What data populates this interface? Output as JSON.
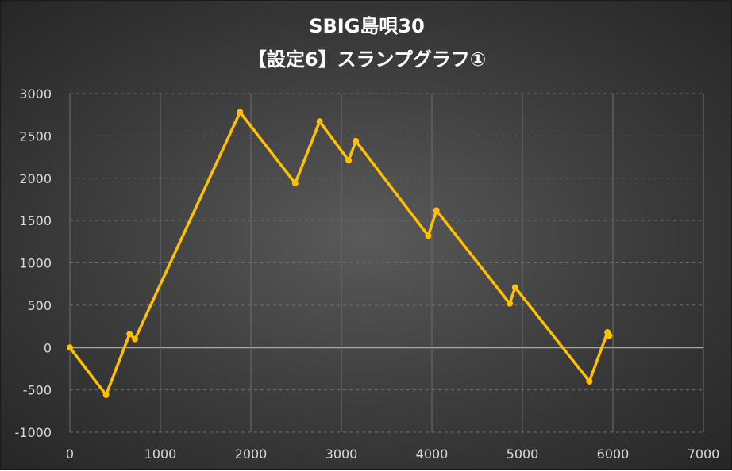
{
  "chart_data": {
    "type": "line",
    "title_line1": "SBIG島唄30",
    "title_line2": "【設定6】スランプグラフ①",
    "xlim": [
      0,
      7000
    ],
    "ylim": [
      -1000,
      3000
    ],
    "x_ticks": [
      "0",
      "1000",
      "2000",
      "3000",
      "4000",
      "5000",
      "6000",
      "7000"
    ],
    "y_ticks": [
      "3000",
      "2500",
      "2000",
      "1500",
      "1000",
      "500",
      "0",
      "-500",
      "-1000"
    ],
    "grid": true,
    "line_color": "#FFC000",
    "series": [
      {
        "points": [
          {
            "x": 0,
            "y": 0
          },
          {
            "x": 400,
            "y": -560
          },
          {
            "x": 660,
            "y": 160
          },
          {
            "x": 720,
            "y": 100
          },
          {
            "x": 1880,
            "y": 2780
          },
          {
            "x": 2490,
            "y": 1940
          },
          {
            "x": 2760,
            "y": 2670
          },
          {
            "x": 3080,
            "y": 2210
          },
          {
            "x": 3160,
            "y": 2440
          },
          {
            "x": 3960,
            "y": 1320
          },
          {
            "x": 4050,
            "y": 1620
          },
          {
            "x": 4860,
            "y": 520
          },
          {
            "x": 4920,
            "y": 710
          },
          {
            "x": 5740,
            "y": -400
          },
          {
            "x": 5940,
            "y": 180
          },
          {
            "x": 5960,
            "y": 140
          }
        ]
      }
    ]
  }
}
